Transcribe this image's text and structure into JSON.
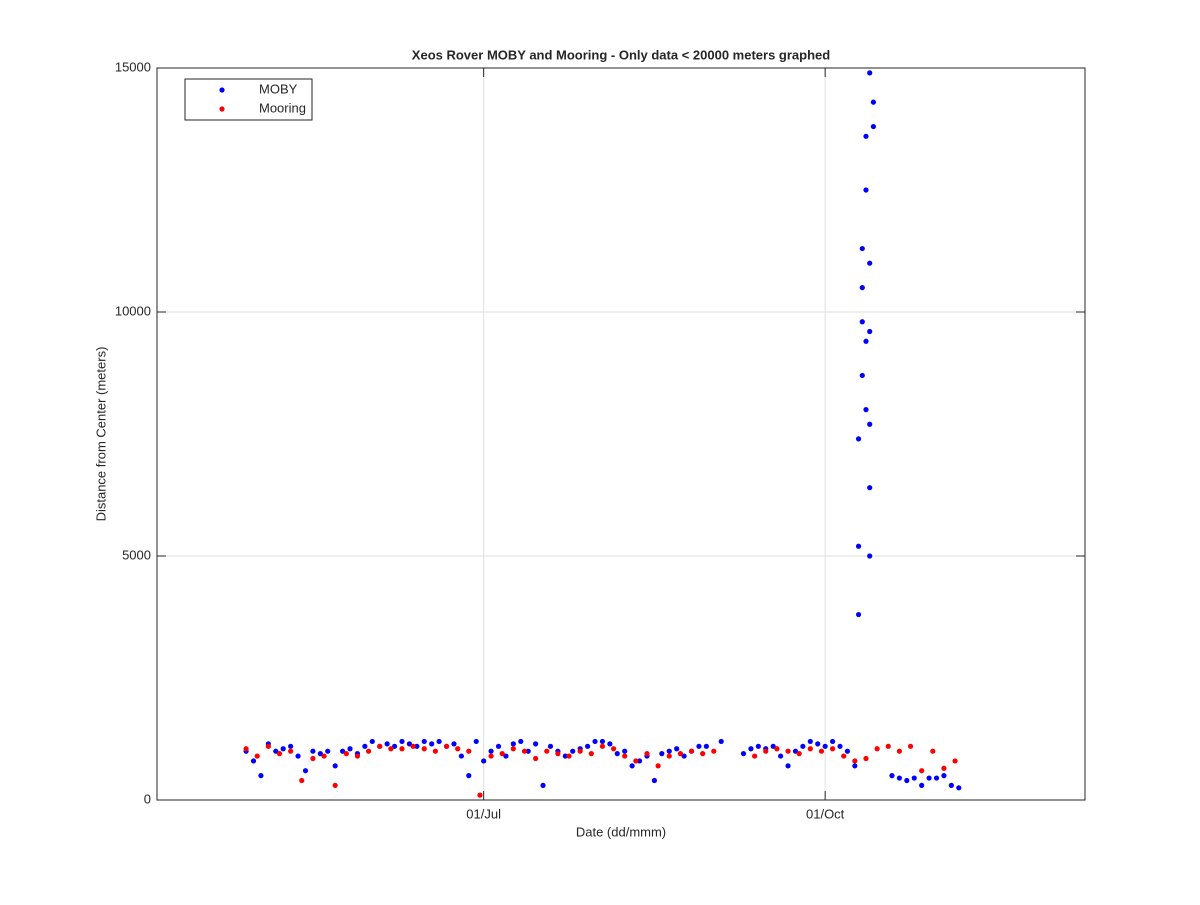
{
  "chart_data": {
    "type": "scatter",
    "title": "Xeos Rover MOBY and Mooring - Only data < 20000 meters graphed",
    "x_label": "Date (dd/mmm)",
    "y_label": "Distance from Center (meters)",
    "xlim": [
      "04/Apr",
      "10/Dec"
    ],
    "xticks": [
      "01/Jul",
      "01/Oct"
    ],
    "ylim": [
      0,
      15000
    ],
    "yticks": [
      0,
      5000,
      10000,
      15000
    ],
    "grid": true,
    "legend": "northwest",
    "series": [
      {
        "name": "MOBY",
        "color": "#0000ff",
        "x": [
          "28/Apr",
          "30/Apr",
          "02/May",
          "04/May",
          "06/May",
          "08/May",
          "10/May",
          "12/May",
          "14/May",
          "16/May",
          "18/May",
          "20/May",
          "22/May",
          "24/May",
          "26/May",
          "28/May",
          "30/May",
          "01/Jun",
          "03/Jun",
          "05/Jun",
          "07/Jun",
          "09/Jun",
          "11/Jun",
          "13/Jun",
          "15/Jun",
          "17/Jun",
          "19/Jun",
          "21/Jun",
          "23/Jun",
          "25/Jun",
          "27/Jun",
          "29/Jun",
          "01/Jul",
          "03/Jul",
          "05/Jul",
          "07/Jul",
          "09/Jul",
          "11/Jul",
          "13/Jul",
          "15/Jul",
          "17/Jul",
          "19/Jul",
          "21/Jul",
          "23/Jul",
          "25/Jul",
          "27/Jul",
          "29/Jul",
          "31/Jul",
          "02/Aug",
          "04/Aug",
          "06/Aug",
          "08/Aug",
          "10/Aug",
          "12/Aug",
          "14/Aug",
          "16/Aug",
          "18/Aug",
          "20/Aug",
          "22/Aug",
          "24/Aug",
          "26/Aug",
          "28/Aug",
          "30/Aug",
          "03/Sep",
          "09/Sep",
          "11/Sep",
          "13/Sep",
          "15/Sep",
          "17/Sep",
          "19/Sep",
          "21/Sep",
          "23/Sep",
          "25/Sep",
          "27/Sep",
          "29/Sep",
          "01/Oct",
          "03/Oct",
          "05/Oct",
          "07/Oct",
          "09/Oct",
          "10/Oct",
          "10/Oct",
          "10/Oct",
          "11/Oct",
          "11/Oct",
          "11/Oct",
          "11/Oct",
          "12/Oct",
          "12/Oct",
          "12/Oct",
          "12/Oct",
          "13/Oct",
          "13/Oct",
          "13/Oct",
          "13/Oct",
          "13/Oct",
          "13/Oct",
          "14/Oct",
          "14/Oct",
          "19/Oct",
          "21/Oct",
          "23/Oct",
          "25/Oct",
          "27/Oct",
          "29/Oct",
          "31/Oct",
          "02/Nov",
          "04/Nov",
          "06/Nov"
        ],
        "values": [
          1000,
          800,
          500,
          1150,
          1000,
          1050,
          1100,
          900,
          600,
          1000,
          950,
          1000,
          700,
          1000,
          1050,
          950,
          1100,
          1200,
          1100,
          1150,
          1100,
          1200,
          1150,
          1100,
          1200,
          1150,
          1200,
          1100,
          1150,
          900,
          500,
          1200,
          800,
          1000,
          1100,
          900,
          1150,
          1200,
          1000,
          1150,
          300,
          1100,
          1000,
          900,
          1000,
          1050,
          1100,
          1200,
          1200,
          1150,
          950,
          1000,
          700,
          800,
          900,
          400,
          950,
          1000,
          1050,
          900,
          1000,
          1100,
          1100,
          1200,
          950,
          1050,
          1100,
          1050,
          1100,
          900,
          700,
          1000,
          1100,
          1200,
          1150,
          1100,
          1200,
          1100,
          1000,
          700,
          3800,
          5200,
          7400,
          8700,
          9800,
          10500,
          11300,
          9400,
          8000,
          12500,
          13600,
          14900,
          11000,
          9600,
          7700,
          5000,
          6400,
          13800,
          14300,
          500,
          450,
          400,
          450,
          300,
          450,
          450,
          500,
          300,
          250
        ]
      },
      {
        "name": "Mooring",
        "color": "#ff0000",
        "x": [
          "28/Apr",
          "01/May",
          "04/May",
          "07/May",
          "10/May",
          "13/May",
          "16/May",
          "19/May",
          "22/May",
          "25/May",
          "28/May",
          "31/May",
          "03/Jun",
          "06/Jun",
          "09/Jun",
          "12/Jun",
          "15/Jun",
          "18/Jun",
          "21/Jun",
          "24/Jun",
          "27/Jun",
          "30/Jun",
          "03/Jul",
          "06/Jul",
          "09/Jul",
          "12/Jul",
          "15/Jul",
          "18/Jul",
          "21/Jul",
          "24/Jul",
          "27/Jul",
          "30/Jul",
          "02/Aug",
          "05/Aug",
          "08/Aug",
          "11/Aug",
          "14/Aug",
          "17/Aug",
          "20/Aug",
          "23/Aug",
          "26/Aug",
          "29/Aug",
          "01/Sep",
          "12/Sep",
          "15/Sep",
          "18/Sep",
          "21/Sep",
          "24/Sep",
          "27/Sep",
          "30/Sep",
          "03/Oct",
          "06/Oct",
          "09/Oct",
          "12/Oct",
          "15/Oct",
          "18/Oct",
          "21/Oct",
          "24/Oct",
          "27/Oct",
          "30/Oct",
          "02/Nov",
          "05/Nov"
        ],
        "values": [
          1050,
          900,
          1100,
          950,
          1000,
          400,
          850,
          900,
          300,
          950,
          900,
          1000,
          1100,
          1050,
          1050,
          1100,
          1050,
          1000,
          1100,
          1050,
          1000,
          100,
          900,
          950,
          1050,
          1000,
          850,
          1000,
          950,
          900,
          1000,
          950,
          1100,
          1050,
          900,
          800,
          950,
          700,
          900,
          950,
          1000,
          950,
          1000,
          900,
          1000,
          1050,
          1000,
          950,
          1050,
          1000,
          1050,
          900,
          800,
          850,
          1050,
          1100,
          1000,
          1100,
          600,
          1000,
          650,
          800
        ]
      }
    ]
  }
}
